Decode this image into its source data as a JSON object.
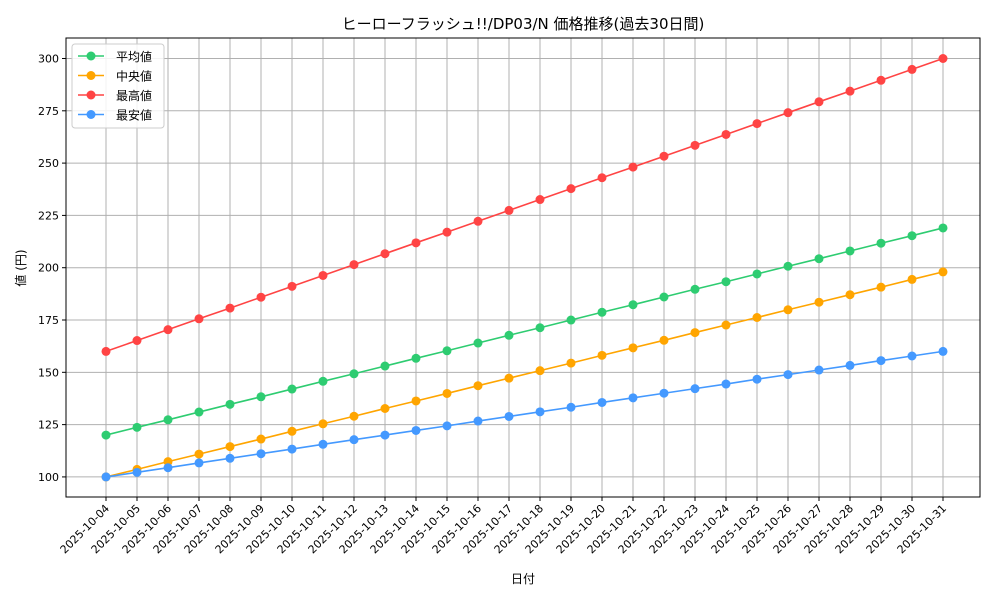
{
  "chart_data": {
    "type": "line",
    "title": "ヒーローフラッシュ!!/DP03/N 価格推移(過去30日間)",
    "xlabel": "日付",
    "ylabel": "値 (円)",
    "ylim": [
      90.4,
      309.8
    ],
    "yticks": [
      100,
      125,
      150,
      175,
      200,
      225,
      250,
      275,
      300
    ],
    "grid": true,
    "legend_position": "top-left",
    "categories": [
      "2025-10-04",
      "2025-10-05",
      "2025-10-06",
      "2025-10-07",
      "2025-10-08",
      "2025-10-09",
      "2025-10-10",
      "2025-10-11",
      "2025-10-12",
      "2025-10-13",
      "2025-10-14",
      "2025-10-15",
      "2025-10-16",
      "2025-10-17",
      "2025-10-18",
      "2025-10-19",
      "2025-10-20",
      "2025-10-21",
      "2025-10-22",
      "2025-10-23",
      "2025-10-24",
      "2025-10-25",
      "2025-10-26",
      "2025-10-27",
      "2025-10-28",
      "2025-10-29",
      "2025-10-30",
      "2025-10-31"
    ],
    "series": [
      {
        "name": "平均値",
        "color": "#2ecc71",
        "values": [
          120,
          123.7,
          127.3,
          131,
          134.7,
          138.3,
          142,
          145.7,
          149.3,
          153,
          156.7,
          160.3,
          164,
          167.7,
          171.3,
          175,
          178.7,
          182.3,
          186,
          189.7,
          193.3,
          197,
          200.7,
          204.3,
          208,
          211.7,
          215.3,
          219
        ]
      },
      {
        "name": "中央値",
        "color": "#ffa500",
        "values": [
          100,
          103.6,
          107.3,
          110.9,
          114.5,
          118.1,
          121.8,
          125.4,
          129,
          132.7,
          136.3,
          139.9,
          143.6,
          147.2,
          150.8,
          154.4,
          158.1,
          161.7,
          165.3,
          169,
          172.6,
          176.2,
          179.9,
          183.5,
          187.1,
          190.7,
          194.4,
          198
        ]
      },
      {
        "name": "最高値",
        "color": "#ff4444",
        "values": [
          160,
          165.2,
          170.4,
          175.6,
          180.7,
          185.9,
          191.1,
          196.3,
          201.5,
          206.7,
          211.9,
          217,
          222.2,
          227.4,
          232.6,
          237.8,
          243,
          248.1,
          253.3,
          258.5,
          263.7,
          268.9,
          274.1,
          279.3,
          284.4,
          289.6,
          294.8,
          300
        ]
      },
      {
        "name": "最安値",
        "color": "#4499ff",
        "values": [
          100,
          102.2,
          104.4,
          106.7,
          108.9,
          111.1,
          113.3,
          115.6,
          117.8,
          120,
          122.2,
          124.4,
          126.7,
          128.9,
          131.1,
          133.3,
          135.6,
          137.8,
          140,
          142.2,
          144.4,
          146.7,
          148.9,
          151.1,
          153.3,
          155.6,
          157.8,
          160
        ]
      }
    ]
  }
}
